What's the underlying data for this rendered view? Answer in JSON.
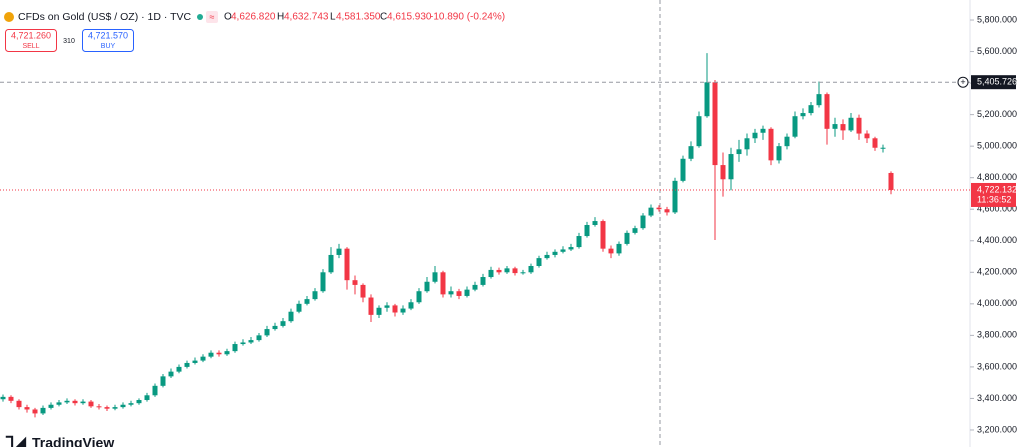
{
  "header": {
    "symbol": "CFDs on Gold (US$ / OZ) · 1D · TVC",
    "o_label": "O",
    "o": "4,626.820",
    "h_label": "H",
    "h": "4,632.743",
    "l_label": "L",
    "l": "4,581.350",
    "c_label": "C",
    "c": "4,615.930",
    "change": "-10.890 (-0.24%)"
  },
  "trade": {
    "sell_price": "4,721.260",
    "sell": "SELL",
    "spread": "310",
    "buy_price": "4,721.570",
    "buy": "BUY"
  },
  "logo": "TradingView",
  "chart_data": {
    "type": "candlestick",
    "up_color": "#089981",
    "down_color": "#f23645",
    "ylim": [
      3092,
      5927
    ],
    "yticks": [
      {
        "value": 3200,
        "label": "3,200.000"
      },
      {
        "value": 3400,
        "label": "3,400.000"
      },
      {
        "value": 3600,
        "label": "3,600.000"
      },
      {
        "value": 3800,
        "label": "3,800.000"
      },
      {
        "value": 4000,
        "label": "4,000.000"
      },
      {
        "value": 4200,
        "label": "4,200.000"
      },
      {
        "value": 4400,
        "label": "4,400.000"
      },
      {
        "value": 4600,
        "label": "4,600.000"
      },
      {
        "value": 4800,
        "label": "4,800.000"
      },
      {
        "value": 5000,
        "label": "5,000.000"
      },
      {
        "value": 5200,
        "label": "5,200.000"
      },
      {
        "value": 5400,
        "label": "5,400.000"
      },
      {
        "value": 5600,
        "label": "5,600.000"
      },
      {
        "value": 5800,
        "label": "5,800.000"
      }
    ],
    "crosshair_price": {
      "value": 5405.726,
      "label": "5,405.726"
    },
    "last_price": {
      "value": 4722.132,
      "label": "4,722.132"
    },
    "countdown": "11:36:52",
    "open": [
      3395,
      3410,
      3385,
      3345,
      3330,
      3305,
      3340,
      3360,
      3375,
      3385,
      3370,
      3380,
      3350,
      3345,
      3335,
      3345,
      3360,
      3370,
      3390,
      3420,
      3480,
      3540,
      3570,
      3600,
      3625,
      3640,
      3665,
      3690,
      3680,
      3700,
      3745,
      3755,
      3770,
      3800,
      3840,
      3860,
      3890,
      3950,
      4000,
      4030,
      4080,
      4200,
      4310,
      4350,
      4150,
      4120,
      4040,
      3930,
      3975,
      3990,
      3945,
      3970,
      4010,
      4080,
      4140,
      4200,
      4060,
      4080,
      4050,
      4090,
      4120,
      4170,
      4215,
      4200,
      4225,
      4195,
      4200,
      4240,
      4290,
      4310,
      4330,
      4345,
      4360,
      4430,
      4500,
      4525,
      4350,
      4320,
      4380,
      4450,
      4480,
      4560,
      4610,
      4600,
      4580,
      4780,
      4920,
      5000,
      5190,
      5405,
      4880,
      4790,
      4950,
      4980,
      5050,
      5085,
      5110,
      4910,
      5000,
      5060,
      5190,
      5210,
      5260,
      5330,
      5110,
      5140,
      5100,
      5180,
      5080,
      5050,
      4990,
      4830
    ],
    "high": [
      3425,
      3420,
      3395,
      3360,
      3340,
      3355,
      3375,
      3390,
      3400,
      3395,
      3395,
      3390,
      3365,
      3355,
      3360,
      3375,
      3385,
      3400,
      3435,
      3495,
      3555,
      3590,
      3615,
      3640,
      3660,
      3680,
      3705,
      3705,
      3715,
      3760,
      3775,
      3790,
      3815,
      3860,
      3880,
      3910,
      3970,
      4020,
      4050,
      4100,
      4220,
      4360,
      4380,
      4360,
      4180,
      4130,
      4060,
      3990,
      4010,
      4000,
      3990,
      4030,
      4100,
      4170,
      4240,
      4210,
      4110,
      4095,
      4110,
      4140,
      4190,
      4235,
      4230,
      4240,
      4235,
      4215,
      4255,
      4305,
      4330,
      4345,
      4365,
      4380,
      4450,
      4520,
      4550,
      4535,
      4370,
      4395,
      4465,
      4495,
      4575,
      4630,
      4625,
      4615,
      4800,
      4940,
      5030,
      5220,
      5590,
      5420,
      4960,
      4990,
      5040,
      5080,
      5110,
      5130,
      5120,
      5020,
      5080,
      5220,
      5240,
      5280,
      5410,
      5340,
      5180,
      5170,
      5210,
      5200,
      5100,
      5060,
      5010,
      4840
    ],
    "low": [
      3380,
      3370,
      3330,
      3310,
      3280,
      3295,
      3330,
      3350,
      3365,
      3355,
      3360,
      3340,
      3330,
      3320,
      3325,
      3335,
      3350,
      3360,
      3380,
      3410,
      3470,
      3530,
      3560,
      3590,
      3615,
      3630,
      3655,
      3665,
      3670,
      3690,
      3735,
      3745,
      3760,
      3790,
      3830,
      3850,
      3880,
      3940,
      3990,
      4020,
      4070,
      4190,
      4290,
      4090,
      4060,
      4010,
      3885,
      3910,
      3950,
      3920,
      3930,
      3960,
      4000,
      4070,
      4130,
      4040,
      4040,
      4030,
      4040,
      4080,
      4110,
      4160,
      4185,
      4190,
      4180,
      4185,
      4190,
      4230,
      4280,
      4295,
      4320,
      4335,
      4350,
      4420,
      4490,
      4330,
      4290,
      4305,
      4370,
      4440,
      4470,
      4550,
      4585,
      4560,
      4570,
      4770,
      4905,
      4990,
      5180,
      4405,
      4680,
      4720,
      4900,
      4940,
      5020,
      5040,
      4880,
      4890,
      4980,
      5050,
      5170,
      5195,
      5245,
      5010,
      5060,
      5040,
      5090,
      5040,
      5020,
      4970,
      4960,
      4695
    ],
    "close": [
      3410,
      3385,
      3345,
      3330,
      3305,
      3340,
      3360,
      3375,
      3385,
      3370,
      3380,
      3350,
      3345,
      3335,
      3345,
      3360,
      3370,
      3390,
      3420,
      3480,
      3540,
      3570,
      3600,
      3625,
      3640,
      3665,
      3690,
      3680,
      3700,
      3745,
      3755,
      3770,
      3800,
      3840,
      3860,
      3890,
      3950,
      4000,
      4030,
      4080,
      4200,
      4310,
      4350,
      4150,
      4120,
      4040,
      3930,
      3975,
      3990,
      3945,
      3970,
      4010,
      4080,
      4140,
      4200,
      4060,
      4080,
      4050,
      4090,
      4120,
      4170,
      4215,
      4200,
      4225,
      4195,
      4200,
      4240,
      4290,
      4310,
      4330,
      4345,
      4360,
      4430,
      4500,
      4525,
      4350,
      4320,
      4380,
      4450,
      4480,
      4560,
      4610,
      4600,
      4580,
      4780,
      4920,
      5000,
      5190,
      5405,
      4880,
      4790,
      4950,
      4980,
      5050,
      5085,
      5110,
      4910,
      5000,
      5060,
      5190,
      5210,
      5260,
      5330,
      5110,
      5140,
      5100,
      5180,
      5080,
      5050,
      4990,
      4990,
      4722.132
    ]
  }
}
